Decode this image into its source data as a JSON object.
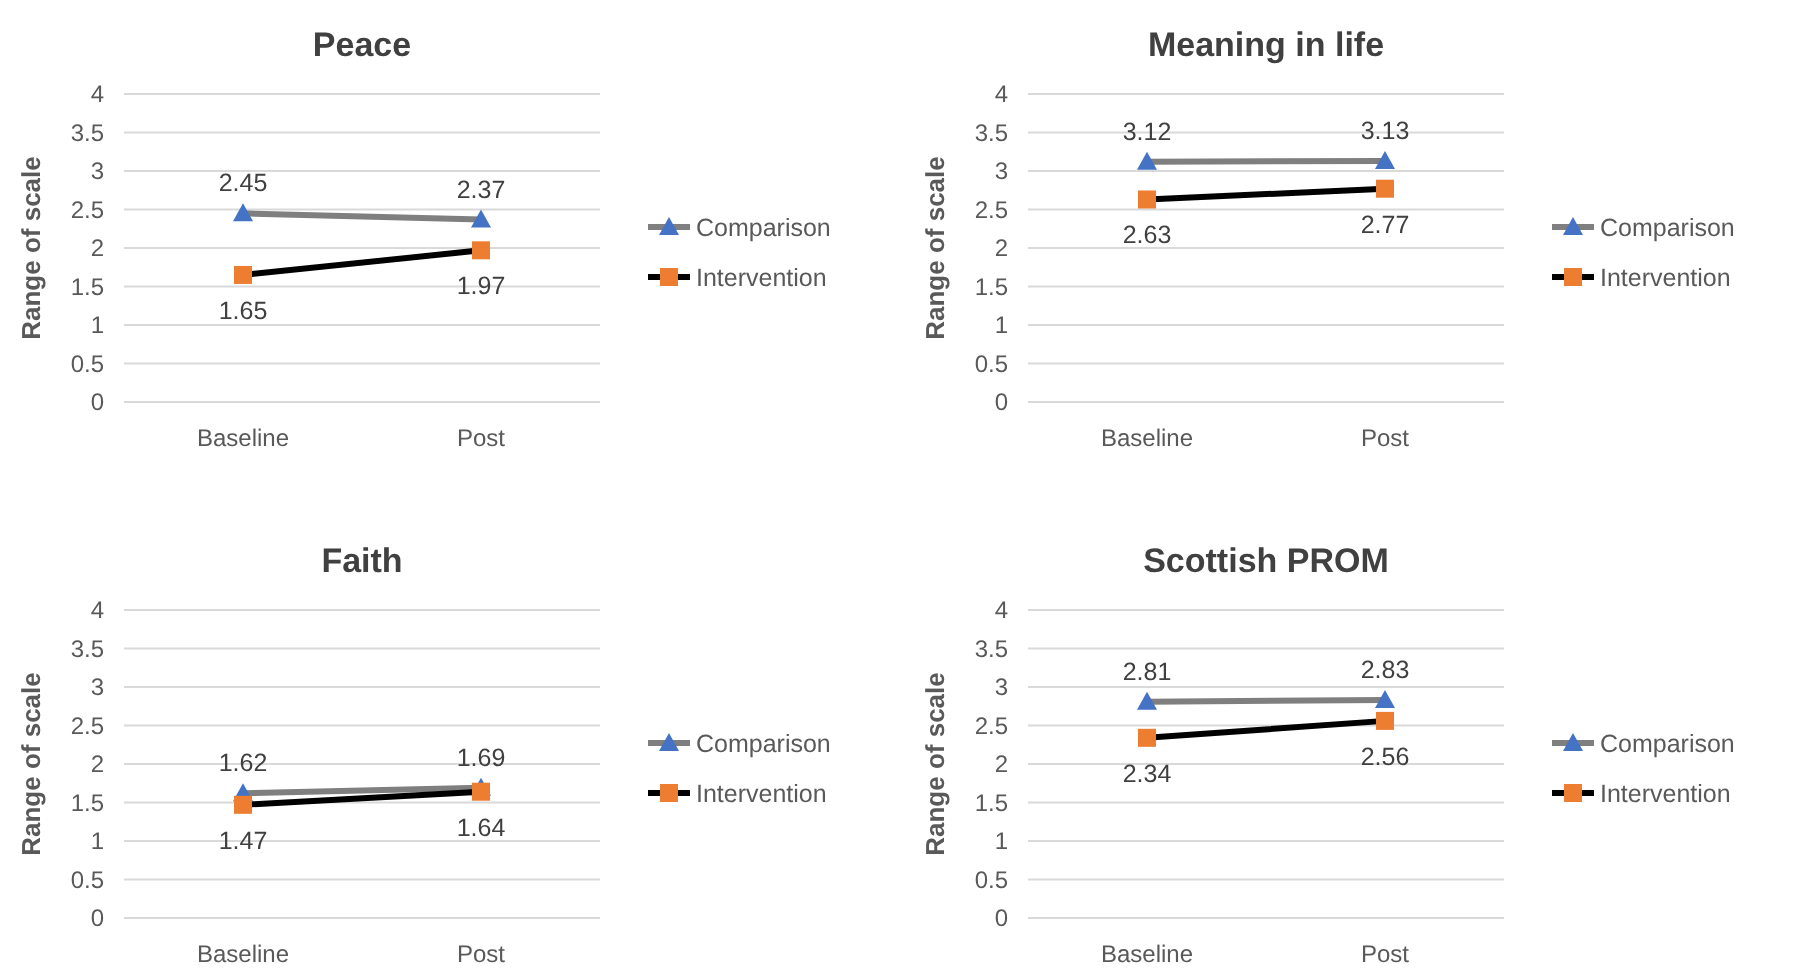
{
  "chart_data": [
    {
      "type": "line",
      "title": "Peace",
      "ylabel": "Range of scale",
      "categories": [
        "Baseline",
        "Post"
      ],
      "ylim": [
        0,
        4
      ],
      "yticks": [
        0,
        0.5,
        1,
        1.5,
        2,
        2.5,
        3,
        3.5,
        4
      ],
      "grid": "y",
      "legend": "right",
      "data_labels": true,
      "series": [
        {
          "name": "Comparison",
          "color": "#7f7f7f",
          "marker": "triangle",
          "colors": [
            "#4472c4",
            "#4472c4"
          ],
          "values": [
            2.45,
            2.37
          ]
        },
        {
          "name": "Intervention",
          "color": "#000000",
          "marker": "square",
          "colors": [
            "#ed7d31",
            "#ed7d31"
          ],
          "values": [
            1.65,
            1.97
          ]
        }
      ]
    },
    {
      "type": "line",
      "title": "Meaning in life",
      "ylabel": "Range of scale",
      "categories": [
        "Baseline",
        "Post"
      ],
      "ylim": [
        0,
        4
      ],
      "yticks": [
        0,
        0.5,
        1,
        1.5,
        2,
        2.5,
        3,
        3.5,
        4
      ],
      "grid": "y",
      "legend": "right",
      "data_labels": true,
      "series": [
        {
          "name": "Comparison",
          "color": "#7f7f7f",
          "marker": "triangle",
          "colors": [
            "#4472c4",
            "#4472c4"
          ],
          "values": [
            3.12,
            3.13
          ]
        },
        {
          "name": "Intervention",
          "color": "#000000",
          "marker": "square",
          "colors": [
            "#ed7d31",
            "#ed7d31"
          ],
          "values": [
            2.63,
            2.77
          ]
        }
      ]
    },
    {
      "type": "line",
      "title": "Faith",
      "ylabel": "Range of scale",
      "categories": [
        "Baseline",
        "Post"
      ],
      "ylim": [
        0,
        4
      ],
      "yticks": [
        0,
        0.5,
        1,
        1.5,
        2,
        2.5,
        3,
        3.5,
        4
      ],
      "grid": "y",
      "legend": "right",
      "data_labels": true,
      "series": [
        {
          "name": "Comparison",
          "color": "#7f7f7f",
          "marker": "triangle",
          "colors": [
            "#4472c4",
            "#4472c4"
          ],
          "values": [
            1.62,
            1.69
          ]
        },
        {
          "name": "Intervention",
          "color": "#000000",
          "marker": "square",
          "colors": [
            "#ed7d31",
            "#ed7d31"
          ],
          "values": [
            1.47,
            1.64
          ]
        }
      ]
    },
    {
      "type": "line",
      "title": "Scottish PROM",
      "ylabel": "Range of scale",
      "categories": [
        "Baseline",
        "Post"
      ],
      "ylim": [
        0,
        4
      ],
      "yticks": [
        0,
        0.5,
        1,
        1.5,
        2,
        2.5,
        3,
        3.5,
        4
      ],
      "grid": "y",
      "legend": "right",
      "data_labels": true,
      "series": [
        {
          "name": "Comparison",
          "color": "#7f7f7f",
          "marker": "triangle",
          "colors": [
            "#4472c4",
            "#4472c4"
          ],
          "values": [
            2.81,
            2.83
          ]
        },
        {
          "name": "Intervention",
          "color": "#000000",
          "marker": "square",
          "colors": [
            "#ed7d31",
            "#ed7d31"
          ],
          "values": [
            2.34,
            2.56
          ]
        }
      ]
    }
  ]
}
